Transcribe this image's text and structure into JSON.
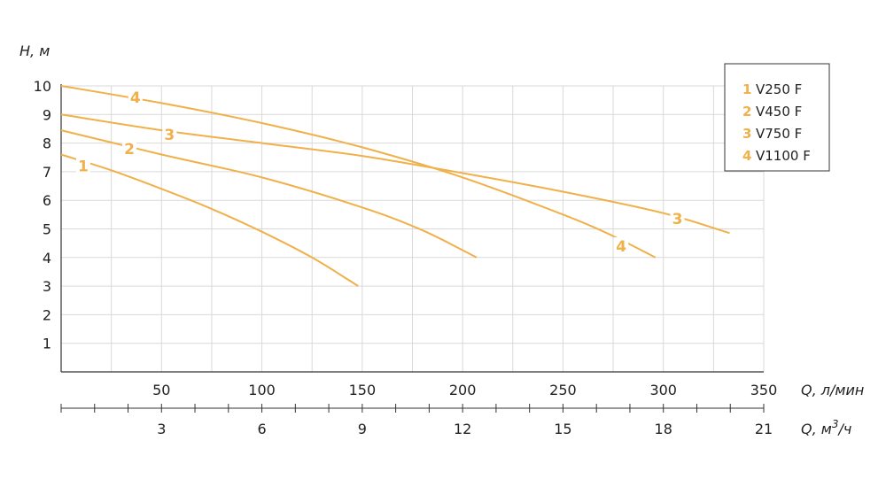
{
  "chart_data": {
    "type": "line",
    "ylabel": "H, м",
    "xlabel": "Q, л/мин",
    "x2label": "Q, м³/ч",
    "x2label_base": "Q, м",
    "x2label_sup": "3",
    "x2label_tail": "/ч",
    "xlim": [
      0,
      350
    ],
    "ylim": [
      0,
      10
    ],
    "x_ticks": [
      50,
      100,
      150,
      200,
      250,
      300,
      350
    ],
    "x2_ticks": [
      3,
      6,
      9,
      12,
      15,
      18,
      21
    ],
    "y_ticks": [
      1,
      2,
      3,
      4,
      5,
      6,
      7,
      8,
      9,
      10
    ],
    "grid": true,
    "legend_position": "top-right",
    "colors": {
      "curve": "#f0b04a",
      "grid": "#d9d9d9",
      "axis": "#333333"
    },
    "series": [
      {
        "num": "1",
        "name": "V250 F",
        "x": [
          0,
          25,
          50,
          75,
          100,
          125,
          148
        ],
        "y": [
          7.6,
          7.05,
          6.4,
          5.7,
          4.9,
          4.0,
          3.0
        ],
        "label_at": [
          11,
          7.2
        ]
      },
      {
        "num": "2",
        "name": "V450 F",
        "x": [
          0,
          50,
          100,
          150,
          180,
          207
        ],
        "y": [
          8.45,
          7.6,
          6.8,
          5.75,
          4.95,
          4.0
        ],
        "label_at": [
          34,
          7.8
        ]
      },
      {
        "num": "3",
        "name": "V750 F",
        "x": [
          0,
          50,
          100,
          150,
          200,
          250,
          300,
          333
        ],
        "y": [
          9.0,
          8.45,
          8.0,
          7.55,
          6.95,
          6.3,
          5.55,
          4.85
        ],
        "label_at": [
          54,
          8.3
        ]
      },
      {
        "num": "4",
        "name": "V1100 F",
        "x": [
          0,
          50,
          100,
          150,
          200,
          250,
          275,
          296
        ],
        "y": [
          10.0,
          9.4,
          8.7,
          7.85,
          6.8,
          5.5,
          4.75,
          4.0
        ],
        "label_at": [
          37,
          9.6
        ]
      }
    ],
    "extra_labels": [
      {
        "text": "3",
        "at": [
          307,
          5.35
        ]
      },
      {
        "text": "4",
        "at": [
          279,
          4.4
        ]
      }
    ]
  }
}
